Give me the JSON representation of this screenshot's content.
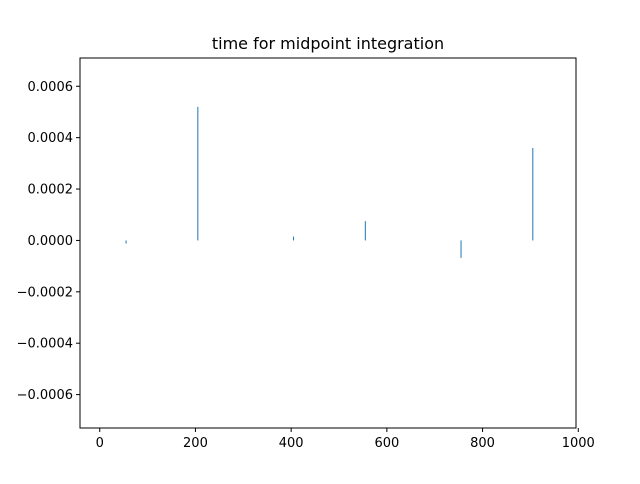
{
  "chart_data": {
    "type": "bar",
    "title": "time for midpoint integration",
    "xlabel": "",
    "ylabel": "",
    "xlim": [
      -41.25,
      995.25
    ],
    "ylim": [
      -0.00073,
      0.00071
    ],
    "x_ticks": [
      0,
      200,
      400,
      600,
      800,
      1000
    ],
    "x_tick_labels": [
      "0",
      "200",
      "400",
      "600",
      "800",
      "1000"
    ],
    "y_ticks": [
      -0.0006,
      -0.0004,
      -0.0002,
      0.0,
      0.0002,
      0.0004,
      0.0006
    ],
    "y_tick_labels": [
      "−0.0006",
      "−0.0004",
      "−0.0002",
      "0.0000",
      "0.0002",
      "0.0004",
      "0.0006"
    ],
    "grid": false,
    "bar_color": "#1f77b4",
    "series": [
      {
        "x": [
          55,
          205,
          405,
          555,
          755,
          905
        ],
        "values": [
          -1.2e-05,
          0.00052,
          1.5e-05,
          7.5e-05,
          -6.8e-05,
          0.00036
        ]
      }
    ]
  }
}
